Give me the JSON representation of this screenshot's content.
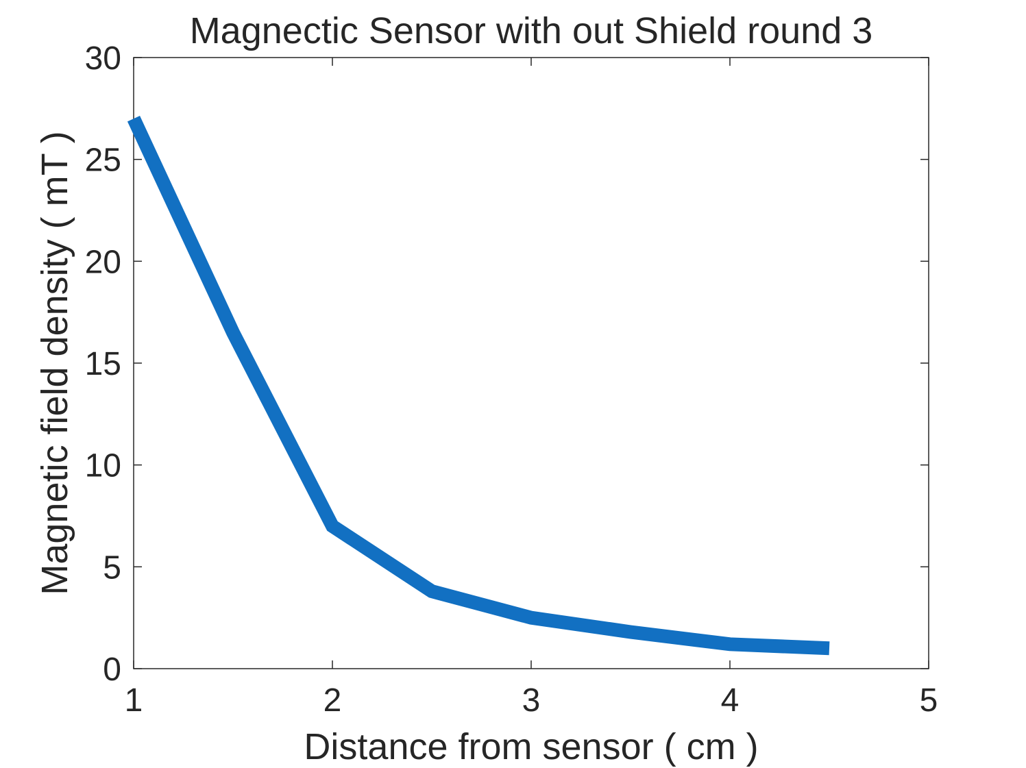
{
  "chart_data": {
    "type": "line",
    "title": "Magnectic Sensor with out Shield round 3",
    "xlabel": "Distance from sensor ( cm )",
    "ylabel": "Magnetic field density ( mT )",
    "xlim": [
      1,
      5
    ],
    "ylim": [
      0,
      30
    ],
    "xticks": [
      1,
      2,
      3,
      4,
      5
    ],
    "yticks": [
      0,
      5,
      10,
      15,
      20,
      25,
      30
    ],
    "grid": false,
    "series": [
      {
        "color": "#1270c2",
        "x": [
          1,
          1.5,
          2,
          2.5,
          3,
          3.5,
          4,
          4.5
        ],
        "y": [
          27,
          16.5,
          7,
          3.8,
          2.5,
          1.8,
          1.2,
          1.0
        ]
      }
    ]
  }
}
